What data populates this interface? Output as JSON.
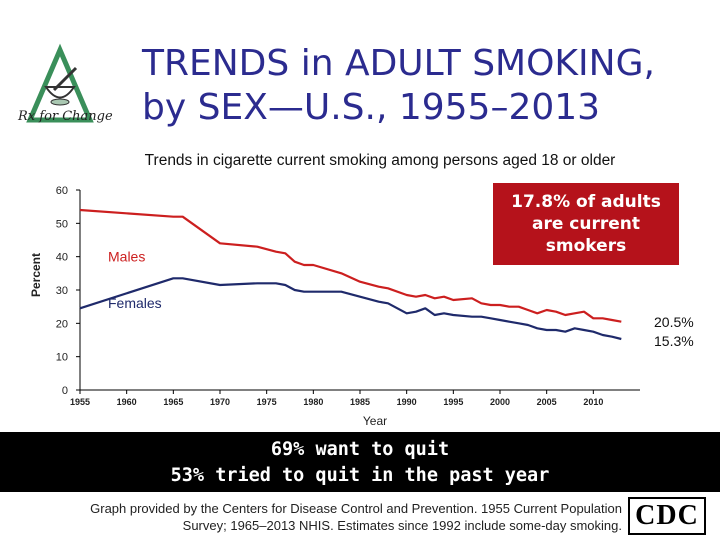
{
  "header": {
    "title_line1": "TRENDS in ADULT SMOKING,",
    "title_line2": "by SEX—U.S., 1955–2013",
    "logo_text": "Rx for Change"
  },
  "callout": {
    "line1": "17.8% of adults",
    "line2": "are current",
    "line3": "smokers"
  },
  "end_labels": {
    "males": "20.5%",
    "females": "15.3%"
  },
  "banner": {
    "line1": "69% want to quit",
    "line2": "53% tried to quit in the past year"
  },
  "credit": {
    "line1": "Graph provided by the Centers for Disease Control and Prevention. 1955 Current Population",
    "line2": "Survey; 1965–2013 NHIS. Estimates since 1992 include some-day smoking."
  },
  "cdc_logo_text": "CDC",
  "colors": {
    "title": "#2b2b8f",
    "males": "#cc1f1f",
    "females": "#1f2a6b",
    "callout": "#b5121b"
  },
  "chart_data": {
    "type": "line",
    "title": "Trends in cigarette current smoking among persons aged 18 or older",
    "xlabel": "Year",
    "ylabel": "Percent",
    "xlim": [
      1955,
      2015
    ],
    "ylim": [
      0,
      60
    ],
    "xticks": [
      1955,
      1960,
      1965,
      1970,
      1975,
      1980,
      1985,
      1990,
      1995,
      2000,
      2005,
      2010
    ],
    "yticks": [
      0,
      10,
      20,
      30,
      40,
      50,
      60
    ],
    "grid": false,
    "series": [
      {
        "name": "Males",
        "color": "#cc1f1f",
        "x": [
          1955,
          1965,
          1966,
          1970,
          1974,
          1976,
          1977,
          1978,
          1979,
          1980,
          1983,
          1985,
          1987,
          1988,
          1990,
          1991,
          1992,
          1993,
          1994,
          1995,
          1997,
          1998,
          1999,
          2000,
          2001,
          2002,
          2003,
          2004,
          2005,
          2006,
          2007,
          2008,
          2009,
          2010,
          2011,
          2012,
          2013
        ],
        "y": [
          54,
          52,
          52,
          44,
          43,
          41.5,
          41,
          38.5,
          37.5,
          37.5,
          35,
          32.5,
          31,
          30.5,
          28.5,
          28,
          28.5,
          27.5,
          28,
          27,
          27.5,
          26,
          25.5,
          25.5,
          25,
          25,
          24,
          23,
          24,
          23.5,
          22.5,
          23,
          23.5,
          21.5,
          21.5,
          21,
          20.5
        ]
      },
      {
        "name": "Females",
        "color": "#1f2a6b",
        "x": [
          1955,
          1965,
          1966,
          1970,
          1974,
          1976,
          1977,
          1978,
          1979,
          1980,
          1983,
          1985,
          1987,
          1988,
          1990,
          1991,
          1992,
          1993,
          1994,
          1995,
          1997,
          1998,
          1999,
          2000,
          2001,
          2002,
          2003,
          2004,
          2005,
          2006,
          2007,
          2008,
          2009,
          2010,
          2011,
          2012,
          2013
        ],
        "y": [
          24.5,
          33.5,
          33.5,
          31.5,
          32,
          32,
          31.5,
          30,
          29.5,
          29.5,
          29.5,
          28,
          26.5,
          26,
          23,
          23.5,
          24.5,
          22.5,
          23,
          22.5,
          22,
          22,
          21.5,
          21,
          20.5,
          20,
          19.5,
          18.5,
          18,
          18,
          17.5,
          18.5,
          18,
          17.5,
          16.5,
          16,
          15.3
        ]
      }
    ],
    "series_labels": [
      "Males",
      "Females"
    ]
  }
}
